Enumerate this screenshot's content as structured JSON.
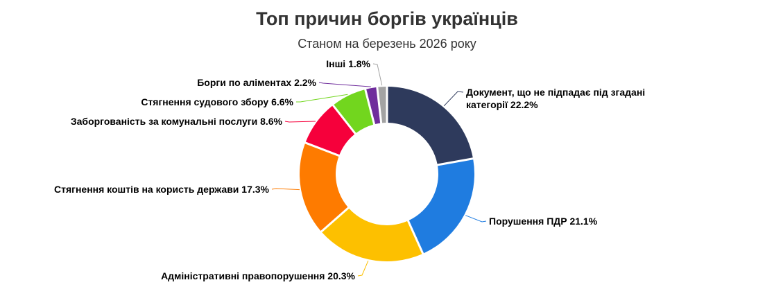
{
  "chart_data": {
    "type": "pie",
    "variant": "donut",
    "title": "Топ причин боргів українців",
    "subtitle": "Станом на березень 2026 року",
    "slices": [
      {
        "label_lines": [
          "Документ, що не підпадає під згадані",
          "категорії 22.2%"
        ],
        "value": 22.2,
        "color": "#2e3a5c"
      },
      {
        "label_lines": [
          "Порушення ПДР 21.1%"
        ],
        "value": 21.1,
        "color": "#1f7ce0"
      },
      {
        "label_lines": [
          "Адміністративні правопорушення 20.3%"
        ],
        "value": 20.3,
        "color": "#fdc000"
      },
      {
        "label_lines": [
          "Стягнення коштів на користь держави 17.3%"
        ],
        "value": 17.3,
        "color": "#fe7b00"
      },
      {
        "label_lines": [
          "Заборгованість за комунальні послуги 8.6%"
        ],
        "value": 8.6,
        "color": "#f6003b"
      },
      {
        "label_lines": [
          "Стягнення судового збору 6.6%"
        ],
        "value": 6.6,
        "color": "#72d61e"
      },
      {
        "label_lines": [
          "Борги по аліментах 2.2%"
        ],
        "value": 2.2,
        "color": "#6f2d9c"
      },
      {
        "label_lines": [
          "Інші 1.8%"
        ],
        "value": 1.8,
        "color": "#a3a3a3"
      }
    ]
  }
}
